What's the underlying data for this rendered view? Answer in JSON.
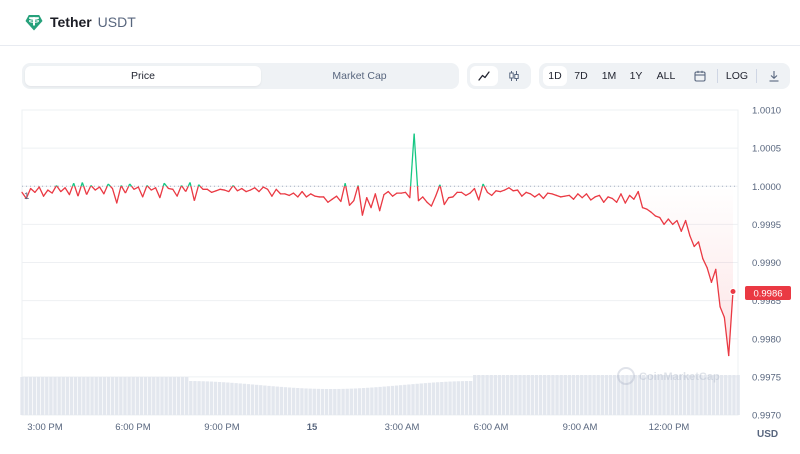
{
  "header": {
    "name": "Tether",
    "symbol": "USDT",
    "logo_icon": "tether-logo-icon",
    "brand_color": "#26a17b"
  },
  "tabs": [
    {
      "label": "Price",
      "active": true
    },
    {
      "label": "Market Cap",
      "active": false
    }
  ],
  "chart_type_toggle": [
    {
      "icon": "line-chart-icon",
      "active": true
    },
    {
      "icon": "candlestick-icon",
      "active": false
    }
  ],
  "ranges": [
    {
      "label": "1D",
      "active": true
    },
    {
      "label": "7D",
      "active": false
    },
    {
      "label": "1M",
      "active": false
    },
    {
      "label": "1Y",
      "active": false
    },
    {
      "label": "ALL",
      "active": false
    }
  ],
  "toolbar": {
    "calendar_icon": "calendar-icon",
    "log_label": "LOG",
    "download_icon": "download-icon"
  },
  "chart_data": {
    "type": "line",
    "currency_label": "USD",
    "reference_label": "1",
    "watermark": "CoinMarketCap",
    "current_price_label": "0.9986",
    "ylim": [
      0.997,
      1.001
    ],
    "y_ticks": [
      "1.0010",
      "1.0005",
      "1.0000",
      "0.9995",
      "0.9990",
      "0.9985",
      "0.9980",
      "0.9975",
      "0.9970"
    ],
    "x_ticks": [
      "3:00 PM",
      "6:00 PM",
      "9:00 PM",
      "15",
      "3:00 AM",
      "6:00 AM",
      "9:00 AM",
      "12:00 PM"
    ],
    "colors": {
      "above": "#16c784",
      "below": "#ea3943",
      "volume": "#e3e7ee"
    },
    "series": [
      {
        "values": [
          0.99992,
          0.99984,
          0.99997,
          0.99992,
          0.99999,
          0.99987,
          0.99995,
          0.99991,
          1.00001,
          0.99993,
          0.99998,
          0.99989,
          1.00004,
          0.99987,
          1.00005,
          0.99989,
          1.00001,
          0.99995,
          0.99999,
          0.9999,
          1.00003,
          0.99997,
          0.99978,
          1.00001,
          0.99991,
          1.00003,
          0.99996,
          0.99999,
          0.99986,
          1.00001,
          0.99995,
          0.99998,
          0.99985,
          1.00004,
          0.99997,
          0.99996,
          0.99987,
          1.00001,
          0.99993,
          1.00005,
          0.99981,
          1.00002,
          0.99996,
          0.99996,
          0.99992,
          0.99994,
          0.99996,
          0.99995,
          0.99993,
          1.00001,
          0.99994,
          0.99997,
          0.99993,
          0.99995,
          0.99998,
          0.99993,
          0.99999,
          0.99996,
          0.99987,
          0.99996,
          0.9999,
          0.9999,
          0.99988,
          0.99991,
          0.99986,
          0.99993,
          0.99986,
          0.9999,
          0.99987,
          0.99986,
          0.99986,
          0.99979,
          0.99983,
          0.99987,
          0.9998,
          1.00004,
          0.99975,
          0.99981,
          1.00001,
          0.99962,
          0.99985,
          0.99972,
          0.9999,
          0.99968,
          0.99989,
          0.99993,
          0.99987,
          0.99991,
          0.99991,
          0.99992,
          0.99985,
          1.00069,
          0.99981,
          0.99986,
          0.99979,
          0.99974,
          0.99987,
          1.00002,
          0.99976,
          0.99985,
          0.99986,
          0.99992,
          0.99992,
          0.99988,
          0.99991,
          0.99997,
          0.99982,
          1.00003,
          0.99992,
          0.99988,
          0.99994,
          0.99993,
          0.99995,
          0.99998,
          0.99994,
          0.99995,
          0.99987,
          0.99992,
          0.9999,
          0.99986,
          0.9999,
          0.99984,
          0.99991,
          0.9999,
          0.99988,
          0.99986,
          0.99987,
          0.99988,
          0.99983,
          0.9999,
          0.99985,
          0.9999,
          0.99982,
          0.99986,
          0.99988,
          0.99979,
          0.99986,
          0.99984,
          0.99979,
          0.9999,
          0.99978,
          0.99988,
          0.99983,
          0.99993,
          0.99972,
          0.9997,
          0.99966,
          0.99961,
          0.99959,
          0.9995,
          0.99957,
          0.9995,
          0.99955,
          0.99941,
          0.99955,
          0.99935,
          0.99921,
          0.99927,
          0.99905,
          0.99893,
          0.99874,
          0.99891,
          0.99842,
          0.99828,
          0.99778,
          0.99862
        ]
      }
    ]
  }
}
